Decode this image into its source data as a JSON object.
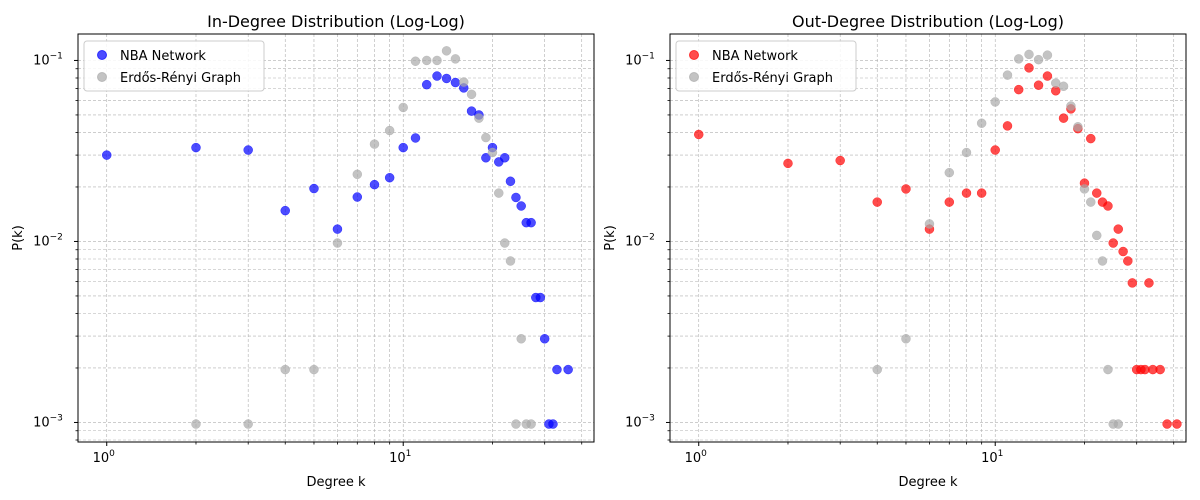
{
  "chart_data": [
    {
      "type": "scatter",
      "title": "In-Degree Distribution (Log-Log)",
      "xlabel": "Degree k",
      "ylabel": "P(k)",
      "xscale": "log",
      "yscale": "log",
      "xlim": [
        0.8,
        44
      ],
      "ylim": [
        0.00078,
        0.14
      ],
      "grid": true,
      "legend_position": "top-left",
      "x_ticks": [
        {
          "base": "10",
          "exp": "0",
          "value": 1
        },
        {
          "base": "10",
          "exp": "1",
          "value": 10
        }
      ],
      "y_ticks": [
        {
          "base": "10",
          "exp": "−3",
          "value": 0.001
        },
        {
          "base": "10",
          "exp": "−2",
          "value": 0.01
        },
        {
          "base": "10",
          "exp": "−1",
          "value": 0.1
        }
      ],
      "series": [
        {
          "name": "NBA Network",
          "color": "#0000ff",
          "points": [
            [
              1,
              0.03
            ],
            [
              2,
              0.033
            ],
            [
              3,
              0.032
            ],
            [
              4,
              0.0148
            ],
            [
              5,
              0.0196
            ],
            [
              6,
              0.0117
            ],
            [
              7,
              0.0176
            ],
            [
              8,
              0.0206
            ],
            [
              9,
              0.0225
            ],
            [
              10,
              0.033
            ],
            [
              11,
              0.0373
            ],
            [
              12,
              0.0735
            ],
            [
              13,
              0.082
            ],
            [
              14,
              0.0795
            ],
            [
              15,
              0.0755
            ],
            [
              16,
              0.0705
            ],
            [
              17,
              0.0525
            ],
            [
              18,
              0.05
            ],
            [
              19,
              0.029
            ],
            [
              20,
              0.033
            ],
            [
              21,
              0.0275
            ],
            [
              22,
              0.029
            ],
            [
              23,
              0.0215
            ],
            [
              24,
              0.0175
            ],
            [
              25,
              0.0157
            ],
            [
              26,
              0.0127
            ],
            [
              27,
              0.0127
            ],
            [
              28,
              0.0049
            ],
            [
              29,
              0.0049
            ],
            [
              30,
              0.0029
            ],
            [
              31,
              0.00098
            ],
            [
              32,
              0.00098
            ],
            [
              33,
              0.00196
            ],
            [
              36,
              0.00196
            ]
          ]
        },
        {
          "name": "Erdős-Rényi Graph",
          "color": "#a9a9a9",
          "points": [
            [
              2,
              0.00098
            ],
            [
              3,
              0.00098
            ],
            [
              4,
              0.00196
            ],
            [
              5,
              0.00196
            ],
            [
              6,
              0.0098
            ],
            [
              7,
              0.0235
            ],
            [
              8,
              0.0345
            ],
            [
              9,
              0.041
            ],
            [
              10,
              0.055
            ],
            [
              11,
              0.099
            ],
            [
              12,
              0.1
            ],
            [
              13,
              0.1
            ],
            [
              14,
              0.113
            ],
            [
              15,
              0.102
            ],
            [
              16,
              0.076
            ],
            [
              17,
              0.065
            ],
            [
              18,
              0.048
            ],
            [
              19,
              0.0375
            ],
            [
              20,
              0.031
            ],
            [
              21,
              0.0185
            ],
            [
              22,
              0.0098
            ],
            [
              23,
              0.0078
            ],
            [
              24,
              0.00098
            ],
            [
              25,
              0.0029
            ],
            [
              26,
              0.00098
            ],
            [
              27,
              0.00098
            ]
          ]
        }
      ]
    },
    {
      "type": "scatter",
      "title": "Out-Degree Distribution (Log-Log)",
      "xlabel": "Degree k",
      "ylabel": "P(k)",
      "xscale": "log",
      "yscale": "log",
      "xlim": [
        0.8,
        44
      ],
      "ylim": [
        0.00078,
        0.14
      ],
      "grid": true,
      "legend_position": "top-left",
      "x_ticks": [
        {
          "base": "10",
          "exp": "0",
          "value": 1
        },
        {
          "base": "10",
          "exp": "1",
          "value": 10
        }
      ],
      "y_ticks": [
        {
          "base": "10",
          "exp": "−3",
          "value": 0.001
        },
        {
          "base": "10",
          "exp": "−2",
          "value": 0.01
        },
        {
          "base": "10",
          "exp": "−1",
          "value": 0.1
        }
      ],
      "series": [
        {
          "name": "NBA Network",
          "color": "#ff0000",
          "points": [
            [
              1,
              0.039
            ],
            [
              2,
              0.027
            ],
            [
              3,
              0.028
            ],
            [
              4,
              0.0165
            ],
            [
              5,
              0.0195
            ],
            [
              6,
              0.0117
            ],
            [
              7,
              0.0165
            ],
            [
              8,
              0.0185
            ],
            [
              9,
              0.0185
            ],
            [
              10,
              0.032
            ],
            [
              11,
              0.0435
            ],
            [
              12,
              0.069
            ],
            [
              13,
              0.091
            ],
            [
              14,
              0.073
            ],
            [
              15,
              0.082
            ],
            [
              16,
              0.068
            ],
            [
              17,
              0.048
            ],
            [
              18,
              0.054
            ],
            [
              19,
              0.042
            ],
            [
              20,
              0.021
            ],
            [
              21,
              0.037
            ],
            [
              22,
              0.0185
            ],
            [
              23,
              0.0165
            ],
            [
              24,
              0.0157
            ],
            [
              25,
              0.0098
            ],
            [
              26,
              0.0117
            ],
            [
              27,
              0.0088
            ],
            [
              28,
              0.0078
            ],
            [
              29,
              0.0059
            ],
            [
              30,
              0.00196
            ],
            [
              31,
              0.00196
            ],
            [
              32,
              0.00196
            ],
            [
              33,
              0.0059
            ],
            [
              34,
              0.00196
            ],
            [
              36,
              0.00196
            ],
            [
              38,
              0.00098
            ],
            [
              41,
              0.00098
            ]
          ]
        },
        {
          "name": "Erdős-Rényi Graph",
          "color": "#a9a9a9",
          "points": [
            [
              4,
              0.00196
            ],
            [
              5,
              0.0029
            ],
            [
              6,
              0.0125
            ],
            [
              7,
              0.024
            ],
            [
              8,
              0.031
            ],
            [
              9,
              0.045
            ],
            [
              10,
              0.059
            ],
            [
              11,
              0.083
            ],
            [
              12,
              0.102
            ],
            [
              13,
              0.108
            ],
            [
              14,
              0.101
            ],
            [
              15,
              0.107
            ],
            [
              16,
              0.075
            ],
            [
              17,
              0.072
            ],
            [
              18,
              0.056
            ],
            [
              19,
              0.043
            ],
            [
              20,
              0.0195
            ],
            [
              21,
              0.0165
            ],
            [
              22,
              0.0108
            ],
            [
              23,
              0.0078
            ],
            [
              24,
              0.00196
            ],
            [
              25,
              0.00098
            ],
            [
              26,
              0.00098
            ]
          ]
        }
      ]
    }
  ]
}
